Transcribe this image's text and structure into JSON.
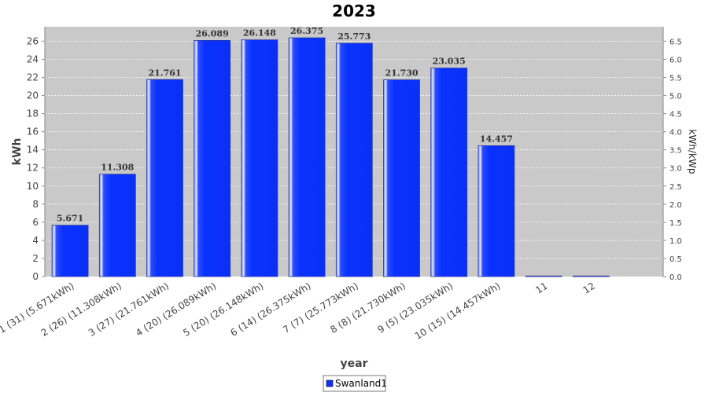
{
  "chart_data": {
    "type": "bar",
    "title": "2023",
    "xlabel": "year",
    "ylabel": "kWh",
    "ylabel_right": "kWh/kWp",
    "ylim": [
      0,
      27.6
    ],
    "ylim_right": [
      0,
      6.9
    ],
    "y_ticks": [
      0,
      2,
      4,
      6,
      8,
      10,
      12,
      14,
      16,
      18,
      20,
      22,
      24,
      26
    ],
    "y_ticks_right": [
      "0.0",
      "0.5",
      "1.0",
      "1.5",
      "2.0",
      "2.5",
      "3.0",
      "3.5",
      "4.0",
      "4.5",
      "5.0",
      "5.5",
      "6.0",
      "6.5"
    ],
    "grid": true,
    "legend": "bottom-center",
    "categories": [
      "1 (31)  (5.671kWh)",
      "2 (26)  (11.308kWh)",
      "3 (27)  (21.761kWh)",
      "4 (20)  (26.089kWh)",
      "5 (20)  (26.148kWh)",
      "6 (14)  (26.375kWh)",
      "7 (7)  (25.773kWh)",
      "8 (8)  (21.730kWh)",
      "9 (5)  (23.035kWh)",
      "10 (15)  (14.457kWh)",
      "11",
      "12"
    ],
    "series": [
      {
        "name": "Swanland1",
        "color": "#0a32ff",
        "values": [
          5.671,
          11.308,
          21.761,
          26.089,
          26.148,
          26.375,
          25.773,
          21.73,
          23.035,
          14.457,
          0,
          0
        ],
        "labels": [
          "5.671",
          "11.308",
          "21.761",
          "26.089",
          "26.148",
          "26.375",
          "25.773",
          "21.730",
          "23.035",
          "14.457",
          "",
          ""
        ]
      }
    ]
  }
}
